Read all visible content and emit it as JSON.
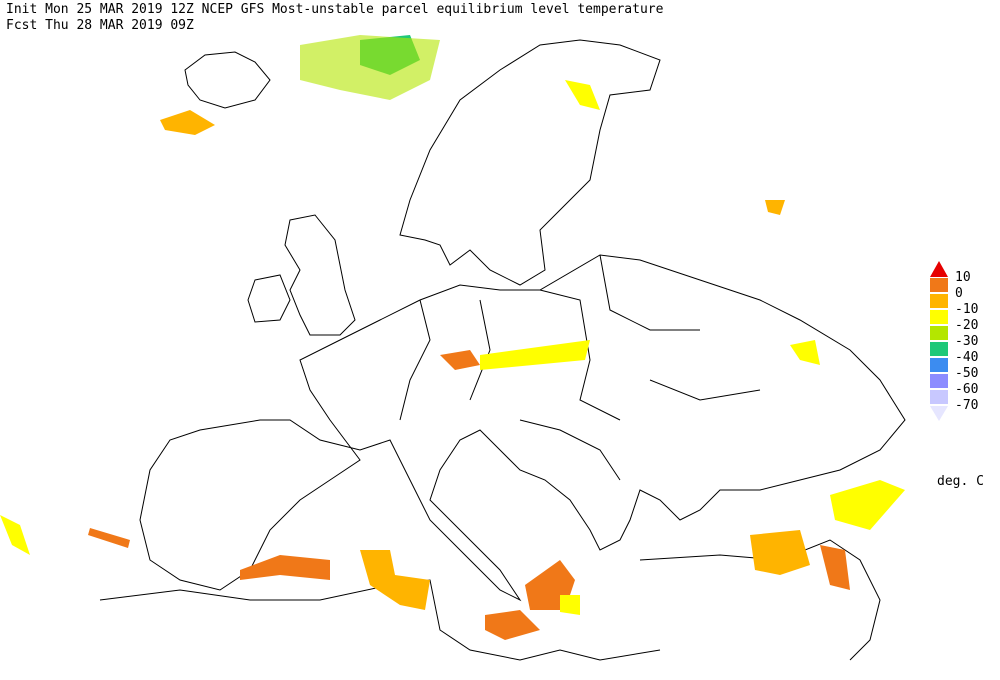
{
  "header": {
    "line1": "Init  Mon 25 MAR 2019 12Z  NCEP GFS Most-unstable parcel equilibrium level temperature",
    "line2": "Fcst Thu 28 MAR 2019 09Z"
  },
  "legend": {
    "labels": [
      10,
      0,
      -10,
      -20,
      -30,
      -40,
      -50,
      -60,
      -70
    ],
    "colors": [
      "#e60000",
      "#f07818",
      "#ffb400",
      "#ffff00",
      "#b4e600",
      "#1ec878",
      "#3c8cf0",
      "#8c8cff",
      "#c8c8ff",
      "#e6e6ff"
    ],
    "unit": "deg. C"
  }
}
